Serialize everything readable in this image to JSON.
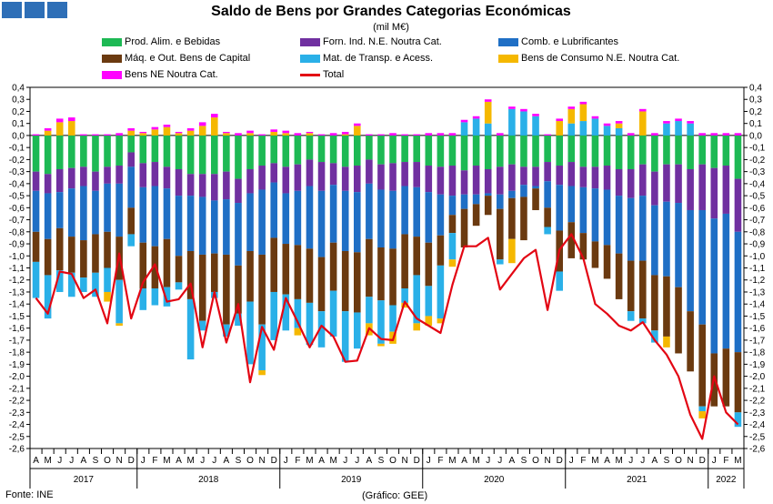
{
  "header": {
    "title": "Saldo de Bens por Grandes Categorias Económicas",
    "subtitle": "(mil M€)"
  },
  "footer": {
    "source": "Fonte: INE",
    "credit": "(Gráfico: GEE)"
  },
  "legend": [
    {
      "label": "Prod. Alim. e Bebidas",
      "color": "#1db954"
    },
    {
      "label": "Forn. Ind. N.E. Noutra Cat.",
      "color": "#7030a0"
    },
    {
      "label": "Comb. e Lubrificantes",
      "color": "#1f6fc5"
    },
    {
      "label": "Máq. e Out. Bens de Capital",
      "color": "#6b3a10"
    },
    {
      "label": "Mat. de Transp. e Acess.",
      "color": "#2ab0e8"
    },
    {
      "label": "Bens de Consumo N.E. Noutra Cat.",
      "color": "#f5b800"
    },
    {
      "label": "Bens NE Noutra Cat.",
      "color": "#ff00ff"
    },
    {
      "label": "Total",
      "color": "#e30613"
    }
  ],
  "chart_data": {
    "type": "bar",
    "stacked": true,
    "ylim": [
      -2.6,
      0.4
    ],
    "yticks": [
      "0,4",
      "0,3",
      "0,2",
      "0,1",
      "0,0",
      "-0,1",
      "-0,2",
      "-0,3",
      "-0,4",
      "-0,5",
      "-0,6",
      "-0,7",
      "-0,8",
      "-0,9",
      "-1,0",
      "-1,1",
      "-1,2",
      "-1,3",
      "-1,4",
      "-1,5",
      "-1,6",
      "-1,7",
      "-1,8",
      "-1,9",
      "-2,0",
      "-2,1",
      "-2,2",
      "-2,3",
      "-2,4",
      "-2,5",
      "-2,6"
    ],
    "categories": [
      "A",
      "M",
      "J",
      "J",
      "A",
      "S",
      "O",
      "N",
      "D",
      "J",
      "F",
      "M",
      "A",
      "M",
      "J",
      "J",
      "A",
      "S",
      "O",
      "N",
      "D",
      "J",
      "F",
      "M",
      "A",
      "M",
      "J",
      "J",
      "A",
      "S",
      "O",
      "N",
      "D",
      "J",
      "F",
      "M",
      "A",
      "M",
      "J",
      "J",
      "A",
      "S",
      "O",
      "N",
      "D",
      "J",
      "F",
      "M",
      "A",
      "M",
      "J",
      "J",
      "A",
      "S",
      "O",
      "N",
      "D",
      "J",
      "F",
      "M"
    ],
    "years": [
      {
        "label": "2017",
        "start": 0,
        "end": 8
      },
      {
        "label": "2018",
        "start": 9,
        "end": 20
      },
      {
        "label": "2019",
        "start": 21,
        "end": 32
      },
      {
        "label": "2020",
        "start": 33,
        "end": 44
      },
      {
        "label": "2021",
        "start": 45,
        "end": 56
      },
      {
        "label": "2022",
        "start": 57,
        "end": 59
      }
    ],
    "series": [
      {
        "name": "Prod. Alim. e Bebidas",
        "color": "#1db954",
        "values": [
          -0.3,
          -0.32,
          -0.28,
          -0.27,
          -0.26,
          -0.3,
          -0.26,
          -0.25,
          -0.14,
          -0.23,
          -0.22,
          -0.26,
          -0.28,
          -0.32,
          -0.32,
          -0.32,
          -0.3,
          -0.36,
          -0.28,
          -0.25,
          -0.23,
          -0.26,
          -0.24,
          -0.2,
          -0.22,
          -0.23,
          -0.26,
          -0.25,
          -0.2,
          -0.24,
          -0.23,
          -0.22,
          -0.22,
          -0.25,
          -0.26,
          -0.25,
          -0.29,
          -0.25,
          -0.28,
          -0.26,
          -0.24,
          -0.26,
          -0.26,
          -0.22,
          -0.25,
          -0.22,
          -0.26,
          -0.26,
          -0.25,
          -0.28,
          -0.28,
          -0.24,
          -0.3,
          -0.24,
          -0.24,
          -0.28,
          -0.24,
          -0.27,
          -0.25,
          -0.36
        ]
      },
      {
        "name": "Forn. Ind. N.E. Noutra Cat.",
        "color": "#7030a0",
        "values": [
          -0.16,
          -0.16,
          -0.19,
          -0.17,
          -0.16,
          -0.16,
          -0.14,
          -0.15,
          -0.12,
          -0.2,
          -0.2,
          -0.18,
          -0.22,
          -0.18,
          -0.19,
          -0.22,
          -0.23,
          -0.2,
          -0.2,
          -0.2,
          -0.16,
          -0.22,
          -0.22,
          -0.22,
          -0.24,
          -0.18,
          -0.2,
          -0.22,
          -0.2,
          -0.21,
          -0.23,
          -0.2,
          -0.21,
          -0.22,
          -0.23,
          -0.25,
          -0.2,
          -0.24,
          -0.2,
          -0.23,
          -0.22,
          -0.15,
          -0.16,
          -0.16,
          -0.16,
          -0.2,
          -0.17,
          -0.18,
          -0.2,
          -0.22,
          -0.24,
          -0.26,
          -0.28,
          -0.31,
          -0.32,
          -0.34,
          -0.38,
          -0.42,
          -0.4,
          -0.44
        ]
      },
      {
        "name": "Comb. e Lubrificantes",
        "color": "#1f6fc5",
        "values": [
          -0.34,
          -0.38,
          -0.3,
          -0.4,
          -0.45,
          -0.36,
          -0.4,
          -0.44,
          -0.34,
          -0.46,
          -0.5,
          -0.42,
          -0.5,
          -0.46,
          -0.48,
          -0.44,
          -0.46,
          -0.52,
          -0.48,
          -0.54,
          -0.46,
          -0.42,
          -0.45,
          -0.52,
          -0.55,
          -0.48,
          -0.5,
          -0.5,
          -0.46,
          -0.48,
          -0.48,
          -0.4,
          -0.41,
          -0.42,
          -0.34,
          -0.16,
          -0.12,
          -0.08,
          -0.02,
          -0.12,
          -0.06,
          -0.1,
          -0.02,
          -0.22,
          -0.38,
          -0.3,
          -0.38,
          -0.44,
          -0.46,
          -0.48,
          -0.52,
          -0.54,
          -0.58,
          -0.62,
          -0.7,
          -0.84,
          -0.95,
          -1.12,
          -1.12,
          -1.0
        ]
      },
      {
        "name": "Máq. e Out. Bens de Capital",
        "color": "#6b3a10",
        "values": [
          -0.25,
          -0.3,
          -0.35,
          -0.3,
          -0.31,
          -0.32,
          -0.3,
          -0.36,
          -0.22,
          -0.38,
          -0.35,
          -0.4,
          -0.22,
          -0.4,
          -0.55,
          -0.32,
          -0.58,
          -0.4,
          -0.42,
          -0.58,
          -0.45,
          -0.42,
          -0.45,
          -0.45,
          -0.45,
          -0.4,
          -0.5,
          -0.5,
          -0.48,
          -0.44,
          -0.47,
          -0.45,
          -0.32,
          -0.36,
          -0.25,
          -0.15,
          -0.32,
          -0.18,
          -0.16,
          -0.42,
          -0.34,
          -0.36,
          -0.18,
          -0.16,
          -0.34,
          -0.3,
          -0.22,
          -0.22,
          -0.28,
          -0.38,
          -0.42,
          -0.48,
          -0.46,
          -0.5,
          -0.55,
          -0.5,
          -0.68,
          -0.44,
          -0.48,
          -0.5
        ]
      },
      {
        "name": "Mat. de Transp. e Acess.",
        "color": "#2ab0e8",
        "values": [
          -0.3,
          -0.36,
          -0.18,
          -0.2,
          -0.12,
          -0.2,
          -0.2,
          -0.36,
          -0.1,
          -0.18,
          -0.14,
          -0.16,
          -0.06,
          -0.5,
          -0.08,
          -0.05,
          -0.1,
          -0.1,
          -0.52,
          -0.38,
          -0.4,
          -0.3,
          -0.24,
          -0.35,
          -0.3,
          -0.38,
          -0.42,
          -0.3,
          -0.22,
          -0.36,
          -0.22,
          -0.12,
          -0.4,
          -0.25,
          -0.44,
          -0.22,
          0.11,
          0.14,
          0.1,
          -0.04,
          0.22,
          0.2,
          0.16,
          -0.06,
          -0.16,
          0.1,
          0.12,
          0.14,
          0.08,
          0.06,
          -0.08,
          -0.04,
          -0.1,
          0.1,
          0.12,
          0.1,
          -0.04,
          0.0,
          0.0,
          -0.12
        ]
      },
      {
        "name": "Bens de Consumo N.E. Noutra Cat.",
        "color": "#f5b800",
        "values": [
          0.0,
          0.04,
          0.11,
          0.12,
          0.0,
          0.0,
          -0.08,
          -0.02,
          0.04,
          0.02,
          0.05,
          0.07,
          0.02,
          0.04,
          0.08,
          0.15,
          0.02,
          0.0,
          0.02,
          -0.04,
          0.03,
          0.02,
          -0.06,
          0.02,
          0.0,
          0.0,
          0.01,
          0.08,
          -0.1,
          -0.02,
          -0.1,
          -0.04,
          -0.06,
          -0.08,
          -0.04,
          -0.06,
          0.0,
          0.0,
          0.18,
          0.0,
          -0.2,
          0.0,
          0.0,
          0.0,
          0.12,
          0.12,
          0.14,
          0.0,
          0.0,
          0.04,
          0.0,
          0.2,
          0.0,
          -0.09,
          0.0,
          0.0,
          -0.06,
          0.0,
          0.0,
          0.0
        ]
      },
      {
        "name": "Bens NE Noutra Cat.",
        "color": "#ff00ff",
        "values": [
          0.01,
          0.02,
          0.03,
          0.03,
          0.01,
          0.01,
          0.01,
          0.02,
          0.02,
          0.01,
          0.02,
          0.02,
          0.01,
          0.02,
          0.03,
          0.03,
          0.01,
          0.02,
          0.02,
          0.01,
          0.02,
          0.02,
          0.02,
          0.01,
          0.01,
          0.02,
          0.02,
          0.02,
          0.01,
          0.01,
          0.02,
          0.01,
          0.01,
          0.02,
          0.02,
          0.02,
          0.02,
          0.02,
          0.02,
          0.02,
          0.02,
          0.02,
          0.02,
          0.01,
          0.02,
          0.02,
          0.02,
          0.02,
          0.02,
          0.02,
          0.02,
          0.02,
          0.02,
          0.02,
          0.02,
          0.02,
          0.02,
          0.02,
          0.02,
          0.02
        ]
      }
    ],
    "total": {
      "name": "Total",
      "color": "#e30613",
      "values": [
        -1.35,
        -1.48,
        -1.13,
        -1.15,
        -1.35,
        -1.28,
        -1.56,
        -0.98,
        -1.52,
        -1.22,
        -1.07,
        -1.38,
        -1.36,
        -1.23,
        -1.76,
        -1.3,
        -1.72,
        -1.4,
        -2.05,
        -1.59,
        -1.78,
        -1.35,
        -1.55,
        -1.76,
        -1.58,
        -1.67,
        -1.88,
        -1.87,
        -1.6,
        -1.69,
        -1.7,
        -1.38,
        -1.52,
        -1.58,
        -1.64,
        -1.24,
        -0.92,
        -0.92,
        -0.85,
        -1.28,
        -1.15,
        -1.02,
        -0.95,
        -1.45,
        -0.95,
        -0.82,
        -1.02,
        -1.4,
        -1.48,
        -1.58,
        -1.62,
        -1.55,
        -1.7,
        -1.82,
        -2.0,
        -2.32,
        -2.52,
        -2.0,
        -2.3,
        -2.4
      ]
    }
  }
}
